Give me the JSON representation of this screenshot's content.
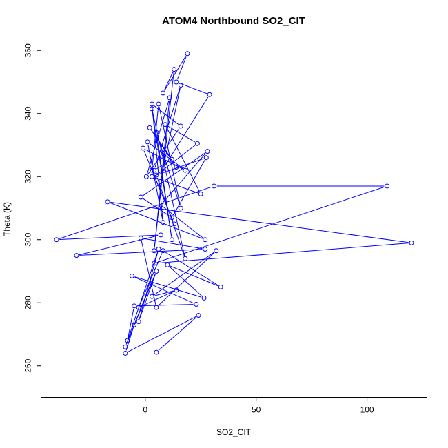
{
  "chart_data": {
    "type": "line",
    "title": "ATOM4 Northbound SO2_CIT",
    "xlabel": "SO2_CIT",
    "ylabel": "Theta (K)",
    "xlim": [
      -47,
      127
    ],
    "ylim": [
      250,
      363
    ],
    "x_ticks": [
      0,
      50,
      100
    ],
    "y_ticks": [
      260,
      280,
      300,
      320,
      340,
      360
    ],
    "grid": false,
    "legend": "none",
    "series_color": "#0000ff",
    "series": [
      {
        "points": [
          [
            5,
            264.3
          ],
          [
            24,
            276
          ],
          [
            -9,
            264
          ],
          [
            -5,
            273
          ],
          [
            2.5,
            286
          ],
          [
            -9,
            266
          ],
          [
            5,
            290
          ],
          [
            -3,
            274
          ],
          [
            6,
            297
          ],
          [
            -8,
            268
          ],
          [
            -5,
            279
          ],
          [
            23,
            279.5
          ],
          [
            -6,
            288.5
          ],
          [
            26.5,
            281.5
          ],
          [
            10,
            292
          ],
          [
            34,
            285
          ],
          [
            8,
            296.5
          ],
          [
            -3,
            278.5
          ],
          [
            14,
            284
          ],
          [
            3,
            282
          ],
          [
            32,
            296.5
          ],
          [
            5,
            278.5
          ],
          [
            -2,
            300.5
          ],
          [
            27,
            297
          ],
          [
            -31,
            295
          ],
          [
            7,
            301.5
          ],
          [
            -40,
            300
          ],
          [
            31,
            317
          ],
          [
            109,
            317
          ],
          [
            4,
            292.5
          ],
          [
            120,
            299
          ],
          [
            -17,
            312
          ],
          [
            27,
            300
          ],
          [
            7,
            311
          ],
          [
            28,
            328
          ],
          [
            -2,
            313.5
          ],
          [
            12,
            307
          ],
          [
            27.5,
            326
          ],
          [
            3,
            320
          ],
          [
            25,
            314.5
          ],
          [
            9,
            336.5
          ],
          [
            23.5,
            330.5
          ],
          [
            5,
            320.5
          ],
          [
            18,
            294
          ],
          [
            3,
            341.5
          ],
          [
            12,
            300
          ],
          [
            5,
            334
          ],
          [
            16,
            310
          ],
          [
            6,
            343
          ],
          [
            3,
            322
          ],
          [
            13,
            305
          ],
          [
            -1,
            329
          ],
          [
            18,
            322
          ],
          [
            1,
            331
          ],
          [
            8,
            305.5
          ],
          [
            3,
            343
          ],
          [
            16,
            336
          ],
          [
            0.5,
            320
          ],
          [
            11,
            345
          ],
          [
            4,
            296.5
          ],
          [
            13,
            354
          ],
          [
            8,
            346.5
          ],
          [
            19,
            359
          ],
          [
            14,
            350
          ],
          [
            29,
            346
          ],
          [
            8,
            322.5
          ],
          [
            16,
            349
          ],
          [
            4,
            322
          ],
          [
            12,
            325.5
          ],
          [
            2,
            335.5
          ],
          [
            14,
            323
          ]
        ]
      }
    ]
  }
}
